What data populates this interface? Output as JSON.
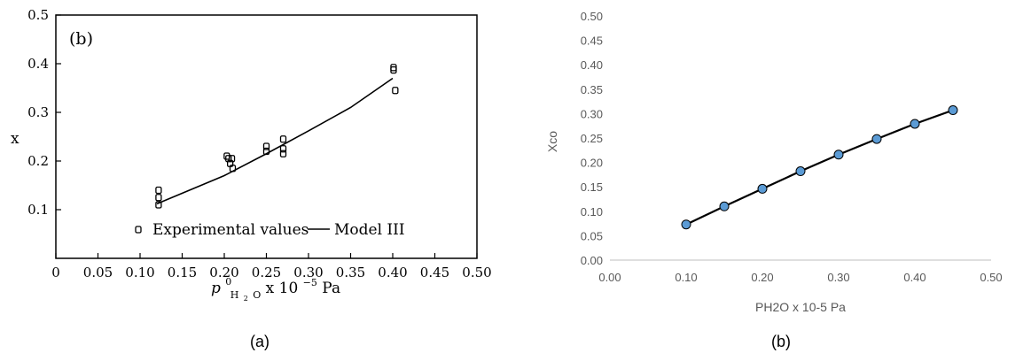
{
  "chart_data": [
    {
      "type": "scatter",
      "panel_tag": "(b)",
      "caption": "(a)",
      "xlabel": "p",
      "xlabel_sup": "0",
      "xlabel_sub": "H",
      "xlabel_sub2": "2",
      "xlabel_sub3": "O",
      "xlabel_rest": " x 10",
      "xlabel_exp": "−5",
      "xlabel_unit": " Pa",
      "ylabel": "x",
      "xlim": [
        0,
        0.5
      ],
      "ylim": [
        0,
        0.5
      ],
      "x_ticks": [
        "0",
        "0.05",
        "0.10",
        "0.15",
        "0.20",
        "0.25",
        "0.30",
        "0.35",
        "0.40",
        "0.45",
        "0.50"
      ],
      "y_ticks": [
        "0.1",
        "0.2",
        "0.3",
        "0.4",
        "0.5"
      ],
      "legend": {
        "marker_label": "Experimental values",
        "line_label": "Model III",
        "placement": "bottom-left"
      },
      "series": [
        {
          "name": "Experimental values",
          "points": [
            {
              "x": 0.122,
              "y": 0.14
            },
            {
              "x": 0.122,
              "y": 0.125
            },
            {
              "x": 0.122,
              "y": 0.11
            },
            {
              "x": 0.203,
              "y": 0.21
            },
            {
              "x": 0.205,
              "y": 0.205
            },
            {
              "x": 0.207,
              "y": 0.195
            },
            {
              "x": 0.21,
              "y": 0.185
            },
            {
              "x": 0.209,
              "y": 0.205
            },
            {
              "x": 0.25,
              "y": 0.23
            },
            {
              "x": 0.25,
              "y": 0.22
            },
            {
              "x": 0.27,
              "y": 0.245
            },
            {
              "x": 0.27,
              "y": 0.225
            },
            {
              "x": 0.27,
              "y": 0.215
            },
            {
              "x": 0.401,
              "y": 0.392
            },
            {
              "x": 0.401,
              "y": 0.387
            },
            {
              "x": 0.403,
              "y": 0.345
            }
          ]
        },
        {
          "name": "Model III",
          "points": [
            {
              "x": 0.12,
              "y": 0.112
            },
            {
              "x": 0.2,
              "y": 0.17
            },
            {
              "x": 0.25,
              "y": 0.215
            },
            {
              "x": 0.3,
              "y": 0.262
            },
            {
              "x": 0.35,
              "y": 0.31
            },
            {
              "x": 0.4,
              "y": 0.37
            }
          ]
        }
      ]
    },
    {
      "type": "line",
      "caption": "(b)",
      "xlabel": "PH2O x 10-5 Pa",
      "ylabel": "Xco",
      "xlim": [
        0,
        0.5
      ],
      "ylim": [
        0,
        0.5
      ],
      "grid": false,
      "x_ticks": [
        "0.00",
        "0.10",
        "0.20",
        "0.30",
        "0.40",
        "0.50"
      ],
      "y_ticks": [
        "0.00",
        "0.05",
        "0.10",
        "0.15",
        "0.20",
        "0.25",
        "0.30",
        "0.35",
        "0.40",
        "0.45",
        "0.50"
      ],
      "line_color": "#000000",
      "marker_color": "#5b9bd5",
      "series": [
        {
          "x": [
            0.1,
            0.15,
            0.2,
            0.25,
            0.3,
            0.35,
            0.4,
            0.45
          ],
          "y": [
            0.073,
            0.11,
            0.146,
            0.182,
            0.216,
            0.248,
            0.279,
            0.307
          ]
        }
      ]
    }
  ]
}
